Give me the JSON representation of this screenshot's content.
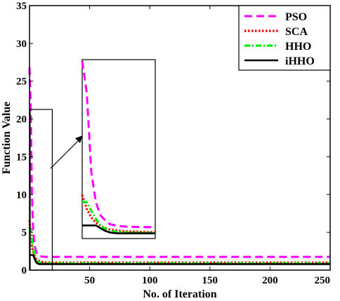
{
  "chart_data": {
    "type": "line",
    "title": "",
    "xlabel": "No. of Iteration",
    "ylabel": "Function Value",
    "xlim": [
      0,
      250
    ],
    "ylim": [
      0,
      35
    ],
    "xticks": [
      50,
      100,
      150,
      200,
      250
    ],
    "yticks": [
      0,
      5,
      10,
      15,
      20,
      25,
      30,
      35
    ],
    "grid": false,
    "legend_position": "top-right",
    "series": [
      {
        "name": "PSO",
        "color": "#ff00ff",
        "style": "dashed",
        "x": [
          0,
          1,
          2,
          3,
          4,
          5,
          6,
          8,
          10,
          14,
          250
        ],
        "y": [
          26.8,
          22.0,
          10.0,
          5.5,
          3.5,
          2.8,
          2.2,
          1.9,
          1.8,
          1.75,
          1.75
        ]
      },
      {
        "name": "SCA",
        "color": "#ff0000",
        "style": "dotted",
        "x": [
          0,
          1,
          2,
          3,
          4,
          5,
          6,
          8,
          10,
          14,
          250
        ],
        "y": [
          6.6,
          4.5,
          3.2,
          2.4,
          2.0,
          1.6,
          1.4,
          1.2,
          1.1,
          1.0,
          1.0
        ]
      },
      {
        "name": "HHO",
        "color": "#00ee00",
        "style": "dashdot",
        "x": [
          0,
          1,
          2,
          3,
          4,
          5,
          6,
          8,
          10,
          14,
          250
        ],
        "y": [
          5.6,
          5.5,
          4.2,
          3.0,
          2.0,
          1.5,
          1.2,
          1.0,
          0.95,
          0.9,
          0.9
        ]
      },
      {
        "name": "iHHO",
        "color": "#000000",
        "style": "solid",
        "x": [
          0,
          3,
          4,
          5,
          6,
          7,
          8,
          10,
          14,
          250
        ],
        "y": [
          2.0,
          2.0,
          1.6,
          1.2,
          0.95,
          0.85,
          0.8,
          0.8,
          0.8,
          0.8
        ]
      }
    ],
    "inset_x_range": [
      0,
      16
    ]
  }
}
